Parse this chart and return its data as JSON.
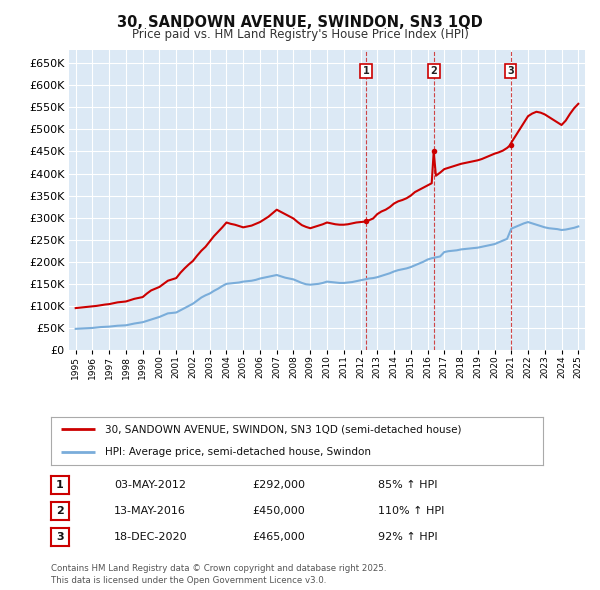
{
  "title": "30, SANDOWN AVENUE, SWINDON, SN3 1QD",
  "subtitle": "Price paid vs. HM Land Registry's House Price Index (HPI)",
  "ylim": [
    0,
    680000
  ],
  "yticks": [
    0,
    50000,
    100000,
    150000,
    200000,
    250000,
    300000,
    350000,
    400000,
    450000,
    500000,
    550000,
    600000,
    650000
  ],
  "background_color": "#ffffff",
  "plot_bg_color": "#dce9f5",
  "grid_color": "#ffffff",
  "legend_label_red": "30, SANDOWN AVENUE, SWINDON, SN3 1QD (semi-detached house)",
  "legend_label_blue": "HPI: Average price, semi-detached house, Swindon",
  "red_color": "#cc0000",
  "blue_color": "#7aadda",
  "sale_markers": [
    {
      "date": 2012.34,
      "price": 292000,
      "label": "1"
    },
    {
      "date": 2016.37,
      "price": 450000,
      "label": "2"
    },
    {
      "date": 2020.96,
      "price": 465000,
      "label": "3"
    }
  ],
  "footer": "Contains HM Land Registry data © Crown copyright and database right 2025.\nThis data is licensed under the Open Government Licence v3.0.",
  "table_data": [
    [
      "1",
      "03-MAY-2012",
      "£292,000",
      "85% ↑ HPI"
    ],
    [
      "2",
      "13-MAY-2016",
      "£450,000",
      "110% ↑ HPI"
    ],
    [
      "3",
      "18-DEC-2020",
      "£465,000",
      "92% ↑ HPI"
    ]
  ],
  "hpi_x": [
    1995.0,
    1995.25,
    1995.5,
    1995.75,
    1996.0,
    1996.25,
    1996.5,
    1996.75,
    1997.0,
    1997.25,
    1997.5,
    1997.75,
    1998.0,
    1998.25,
    1998.5,
    1998.75,
    1999.0,
    1999.25,
    1999.5,
    1999.75,
    2000.0,
    2000.25,
    2000.5,
    2000.75,
    2001.0,
    2001.25,
    2001.5,
    2001.75,
    2002.0,
    2002.25,
    2002.5,
    2002.75,
    2003.0,
    2003.25,
    2003.5,
    2003.75,
    2004.0,
    2004.25,
    2004.5,
    2004.75,
    2005.0,
    2005.25,
    2005.5,
    2005.75,
    2006.0,
    2006.25,
    2006.5,
    2006.75,
    2007.0,
    2007.25,
    2007.5,
    2007.75,
    2008.0,
    2008.25,
    2008.5,
    2008.75,
    2009.0,
    2009.25,
    2009.5,
    2009.75,
    2010.0,
    2010.25,
    2010.5,
    2010.75,
    2011.0,
    2011.25,
    2011.5,
    2011.75,
    2012.0,
    2012.25,
    2012.5,
    2012.75,
    2013.0,
    2013.25,
    2013.5,
    2013.75,
    2014.0,
    2014.25,
    2014.5,
    2014.75,
    2015.0,
    2015.25,
    2015.5,
    2015.75,
    2016.0,
    2016.25,
    2016.5,
    2016.75,
    2017.0,
    2017.25,
    2017.5,
    2017.75,
    2018.0,
    2018.25,
    2018.5,
    2018.75,
    2019.0,
    2019.25,
    2019.5,
    2019.75,
    2020.0,
    2020.25,
    2020.5,
    2020.75,
    2021.0,
    2021.25,
    2021.5,
    2021.75,
    2022.0,
    2022.25,
    2022.5,
    2022.75,
    2023.0,
    2023.25,
    2023.5,
    2023.75,
    2024.0,
    2024.25,
    2024.5,
    2024.75,
    2025.0
  ],
  "hpi_y": [
    48000,
    48500,
    49000,
    49500,
    50000,
    51000,
    52000,
    52500,
    53000,
    54000,
    55000,
    55500,
    56000,
    58000,
    60000,
    61500,
    63000,
    66000,
    69000,
    72000,
    75000,
    79000,
    83000,
    84000,
    85000,
    90000,
    95000,
    100000,
    105000,
    112000,
    119000,
    124000,
    128000,
    134000,
    139000,
    145000,
    150000,
    151000,
    152000,
    153000,
    155000,
    156000,
    157000,
    159000,
    162000,
    164000,
    166000,
    168000,
    170000,
    167000,
    164000,
    162000,
    160000,
    156000,
    152000,
    149000,
    148000,
    149000,
    150000,
    152000,
    155000,
    154000,
    153000,
    152000,
    152000,
    153000,
    154000,
    156000,
    158000,
    160000,
    162000,
    163000,
    165000,
    168000,
    171000,
    174000,
    178000,
    181000,
    183000,
    185000,
    188000,
    192000,
    196000,
    200000,
    205000,
    208000,
    210000,
    212000,
    222000,
    224000,
    225000,
    226000,
    228000,
    229000,
    230000,
    231000,
    232000,
    234000,
    236000,
    238000,
    240000,
    244000,
    248000,
    252000,
    275000,
    279000,
    283000,
    287000,
    290000,
    287000,
    284000,
    281000,
    278000,
    276000,
    275000,
    274000,
    272000,
    273000,
    275000,
    277000,
    280000
  ],
  "price_x": [
    1995.0,
    1995.25,
    1995.5,
    1995.75,
    1996.0,
    1996.25,
    1996.5,
    1996.75,
    1997.0,
    1997.25,
    1997.5,
    1997.75,
    1998.0,
    1998.25,
    1998.5,
    1998.75,
    1999.0,
    1999.25,
    1999.5,
    1999.75,
    2000.0,
    2000.25,
    2000.5,
    2000.75,
    2001.0,
    2001.25,
    2001.5,
    2001.75,
    2002.0,
    2002.25,
    2002.5,
    2002.75,
    2003.0,
    2003.25,
    2003.5,
    2003.75,
    2004.0,
    2004.25,
    2004.5,
    2004.75,
    2005.0,
    2005.25,
    2005.5,
    2005.75,
    2006.0,
    2006.25,
    2006.5,
    2006.75,
    2007.0,
    2007.25,
    2007.5,
    2007.75,
    2008.0,
    2008.25,
    2008.5,
    2008.75,
    2009.0,
    2009.25,
    2009.5,
    2009.75,
    2010.0,
    2010.25,
    2010.5,
    2010.75,
    2011.0,
    2011.25,
    2011.5,
    2011.75,
    2012.0,
    2012.25,
    2012.34,
    2012.5,
    2012.75,
    2013.0,
    2013.25,
    2013.5,
    2013.75,
    2014.0,
    2014.25,
    2014.5,
    2014.75,
    2015.0,
    2015.25,
    2015.5,
    2015.75,
    2016.0,
    2016.25,
    2016.37,
    2016.5,
    2016.75,
    2017.0,
    2017.25,
    2017.5,
    2017.75,
    2018.0,
    2018.25,
    2018.5,
    2018.75,
    2019.0,
    2019.25,
    2019.5,
    2019.75,
    2020.0,
    2020.25,
    2020.5,
    2020.75,
    2020.96,
    2021.0,
    2021.25,
    2021.5,
    2021.75,
    2022.0,
    2022.25,
    2022.5,
    2022.75,
    2023.0,
    2023.25,
    2023.5,
    2023.75,
    2024.0,
    2024.25,
    2024.5,
    2024.75,
    2025.0
  ],
  "price_y": [
    95000,
    96000,
    97000,
    98000,
    99000,
    100000,
    101500,
    103000,
    104000,
    106000,
    108000,
    109000,
    110000,
    113000,
    116000,
    118000,
    120000,
    128000,
    135000,
    139000,
    143000,
    150000,
    157000,
    160000,
    163000,
    175000,
    185000,
    194000,
    202000,
    214000,
    225000,
    234000,
    246000,
    258000,
    268000,
    278000,
    289000,
    286000,
    284000,
    281000,
    278000,
    280000,
    282000,
    286000,
    290000,
    296000,
    302000,
    310000,
    318000,
    313000,
    308000,
    303000,
    298000,
    290000,
    283000,
    279000,
    276000,
    279000,
    282000,
    285000,
    289000,
    287000,
    285000,
    284000,
    284000,
    285000,
    287000,
    289000,
    290000,
    291000,
    292000,
    294000,
    298000,
    308000,
    314000,
    318000,
    324000,
    332000,
    337000,
    340000,
    344000,
    350000,
    358000,
    363000,
    368000,
    373000,
    378000,
    450000,
    395000,
    402000,
    410000,
    413000,
    416000,
    419000,
    422000,
    424000,
    426000,
    428000,
    430000,
    433000,
    437000,
    441000,
    445000,
    448000,
    452000,
    458000,
    465000,
    470000,
    485000,
    500000,
    515000,
    530000,
    536000,
    540000,
    538000,
    534000,
    528000,
    522000,
    516000,
    510000,
    520000,
    535000,
    548000,
    558000
  ]
}
